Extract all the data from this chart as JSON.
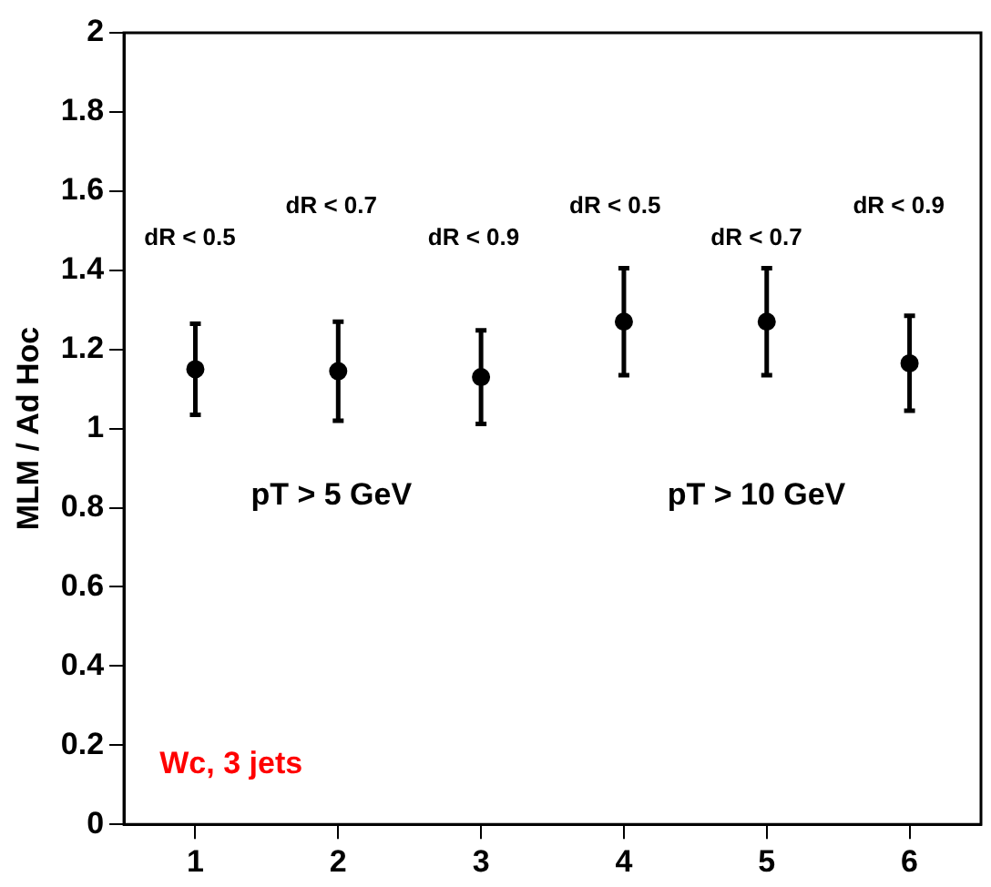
{
  "chart_data": {
    "type": "scatter",
    "ylabel": "MLM / Ad Hoc",
    "x": [
      1,
      2,
      3,
      4,
      5,
      6
    ],
    "series": [
      {
        "color": "#000000",
        "values": [
          1.15,
          1.145,
          1.13,
          1.27,
          1.27,
          1.165
        ],
        "errors": [
          0.115,
          0.125,
          0.118,
          0.135,
          0.135,
          0.12
        ]
      }
    ],
    "xlim": [
      0.5,
      6.5
    ],
    "xticks": [
      1,
      2,
      3,
      4,
      5,
      6
    ],
    "ylim": [
      0,
      2
    ],
    "yticks": [
      0,
      0.2,
      0.4,
      0.6,
      0.8,
      1,
      1.2,
      1.4,
      1.6,
      1.8,
      2
    ],
    "grid": false,
    "legend": false,
    "marker": "circle",
    "annotations": [
      "dR < 0.5",
      "dR < 0.7",
      "dR < 0.9",
      "dR < 0.5",
      "dR < 0.7",
      "dR < 0.9",
      "pT > 5 GeV",
      "pT > 10 GeV",
      "Wc, 3 jets"
    ]
  }
}
